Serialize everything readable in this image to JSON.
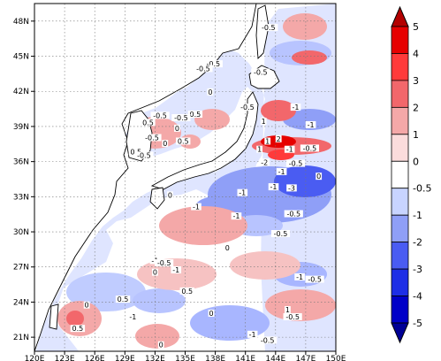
{
  "map": {
    "lat_ticks": [
      "48N",
      "45N",
      "42N",
      "39N",
      "36N",
      "33N",
      "30N",
      "27N",
      "24N",
      "21N"
    ],
    "lon_ticks": [
      "120E",
      "123E",
      "126E",
      "129E",
      "132E",
      "135E",
      "138E",
      "141E",
      "144E",
      "147E",
      "150E"
    ],
    "extent": {
      "lon_min": 120,
      "lon_max": 150,
      "lat_min": 19.8,
      "lat_max": 49.5
    },
    "contour_labels": [
      {
        "text": "-0.5",
        "lon": 143.3,
        "lat": 47.3
      },
      {
        "text": "-0.5",
        "lon": 137.8,
        "lat": 44.2
      },
      {
        "text": "-0.5",
        "lon": 136.8,
        "lat": 43.8
      },
      {
        "text": "-0.5",
        "lon": 142.5,
        "lat": 43.5
      },
      {
        "text": "0",
        "lon": 137.5,
        "lat": 41.8
      },
      {
        "text": "-0.5",
        "lon": 141.2,
        "lat": 40.5
      },
      {
        "text": "-0.5",
        "lon": 132.5,
        "lat": 39.8
      },
      {
        "text": "0.5",
        "lon": 136.0,
        "lat": 39.9
      },
      {
        "text": "-0.5",
        "lon": 134.6,
        "lat": 39.6
      },
      {
        "text": "0.5",
        "lon": 131.3,
        "lat": 39.2
      },
      {
        "text": "1",
        "lon": 142.8,
        "lat": 39.3
      },
      {
        "text": "-1",
        "lon": 146.0,
        "lat": 40.5
      },
      {
        "text": "-1",
        "lon": 147.5,
        "lat": 39.0
      },
      {
        "text": "0",
        "lon": 134.2,
        "lat": 38.7
      },
      {
        "text": "-0.5",
        "lon": 131.7,
        "lat": 37.9
      },
      {
        "text": "0.5",
        "lon": 134.8,
        "lat": 37.6
      },
      {
        "text": "0",
        "lon": 133.0,
        "lat": 37.4
      },
      {
        "text": "1",
        "lon": 143.2,
        "lat": 37.6
      },
      {
        "text": "2",
        "lon": 144.3,
        "lat": 37.8
      },
      {
        "text": "1",
        "lon": 142.4,
        "lat": 36.9
      },
      {
        "text": "-1",
        "lon": 145.4,
        "lat": 36.9
      },
      {
        "text": "-0.5",
        "lon": 147.4,
        "lat": 37.0
      },
      {
        "text": "0.5",
        "lon": 130.1,
        "lat": 36.7
      },
      {
        "text": "-0.5",
        "lon": 130.9,
        "lat": 36.4
      },
      {
        "text": "-2",
        "lon": 142.9,
        "lat": 35.8
      },
      {
        "text": "-0.5",
        "lon": 146.0,
        "lat": 35.7
      },
      {
        "text": "-1",
        "lon": 144.6,
        "lat": 35.0
      },
      {
        "text": "-1",
        "lon": 143.8,
        "lat": 33.7
      },
      {
        "text": "-3",
        "lon": 145.6,
        "lat": 33.6
      },
      {
        "text": "0",
        "lon": 148.3,
        "lat": 34.6
      },
      {
        "text": "-1",
        "lon": 140.7,
        "lat": 33.2
      },
      {
        "text": "0",
        "lon": 133.5,
        "lat": 33.0
      },
      {
        "text": "-1",
        "lon": 136.1,
        "lat": 32.0
      },
      {
        "text": "-0.5",
        "lon": 145.8,
        "lat": 31.4
      },
      {
        "text": "-1",
        "lon": 140.1,
        "lat": 31.2
      },
      {
        "text": "-0.5",
        "lon": 144.5,
        "lat": 29.7
      },
      {
        "text": "0",
        "lon": 139.2,
        "lat": 28.5
      },
      {
        "text": "-1",
        "lon": 132.0,
        "lat": 27.4
      },
      {
        "text": "-0.5",
        "lon": 132.9,
        "lat": 27.2
      },
      {
        "text": "-1",
        "lon": 134.1,
        "lat": 26.6
      },
      {
        "text": "0",
        "lon": 132.0,
        "lat": 26.4
      },
      {
        "text": "-1",
        "lon": 146.4,
        "lat": 26.0
      },
      {
        "text": "-0.5",
        "lon": 147.9,
        "lat": 25.8
      },
      {
        "text": "0.5",
        "lon": 135.2,
        "lat": 24.8
      },
      {
        "text": "0.5",
        "lon": 128.8,
        "lat": 24.1
      },
      {
        "text": "0",
        "lon": 125.2,
        "lat": 23.6
      },
      {
        "text": "-1",
        "lon": 129.8,
        "lat": 22.6
      },
      {
        "text": "0",
        "lon": 137.6,
        "lat": 22.9
      },
      {
        "text": "1",
        "lon": 145.2,
        "lat": 23.2
      },
      {
        "text": "-0.5",
        "lon": 145.7,
        "lat": 22.6
      },
      {
        "text": "0.5",
        "lon": 124.3,
        "lat": 21.6
      },
      {
        "text": "-1",
        "lon": 141.7,
        "lat": 21.1
      },
      {
        "text": "-0.5",
        "lon": 143.2,
        "lat": 20.6
      },
      {
        "text": "0",
        "lon": 132.6,
        "lat": 20.2
      }
    ]
  },
  "colorbar": {
    "labels": [
      "5",
      "4",
      "3",
      "2",
      "1",
      "0",
      "-0.5",
      "-1",
      "-2",
      "-3",
      "-4",
      "-5"
    ],
    "colors": [
      "#b30000",
      "#e60000",
      "#ff3a3a",
      "#f2676b",
      "#f4a8a8",
      "#fbdcdc",
      "#ffffff",
      "#c8d4ff",
      "#8f9ff7",
      "#4a5cf2",
      "#1d2ee6",
      "#0000c8",
      "#000096"
    ]
  },
  "colors": {
    "frame": "#000000",
    "land": "#ffffff",
    "ocean_fill": "#eef0ff"
  }
}
